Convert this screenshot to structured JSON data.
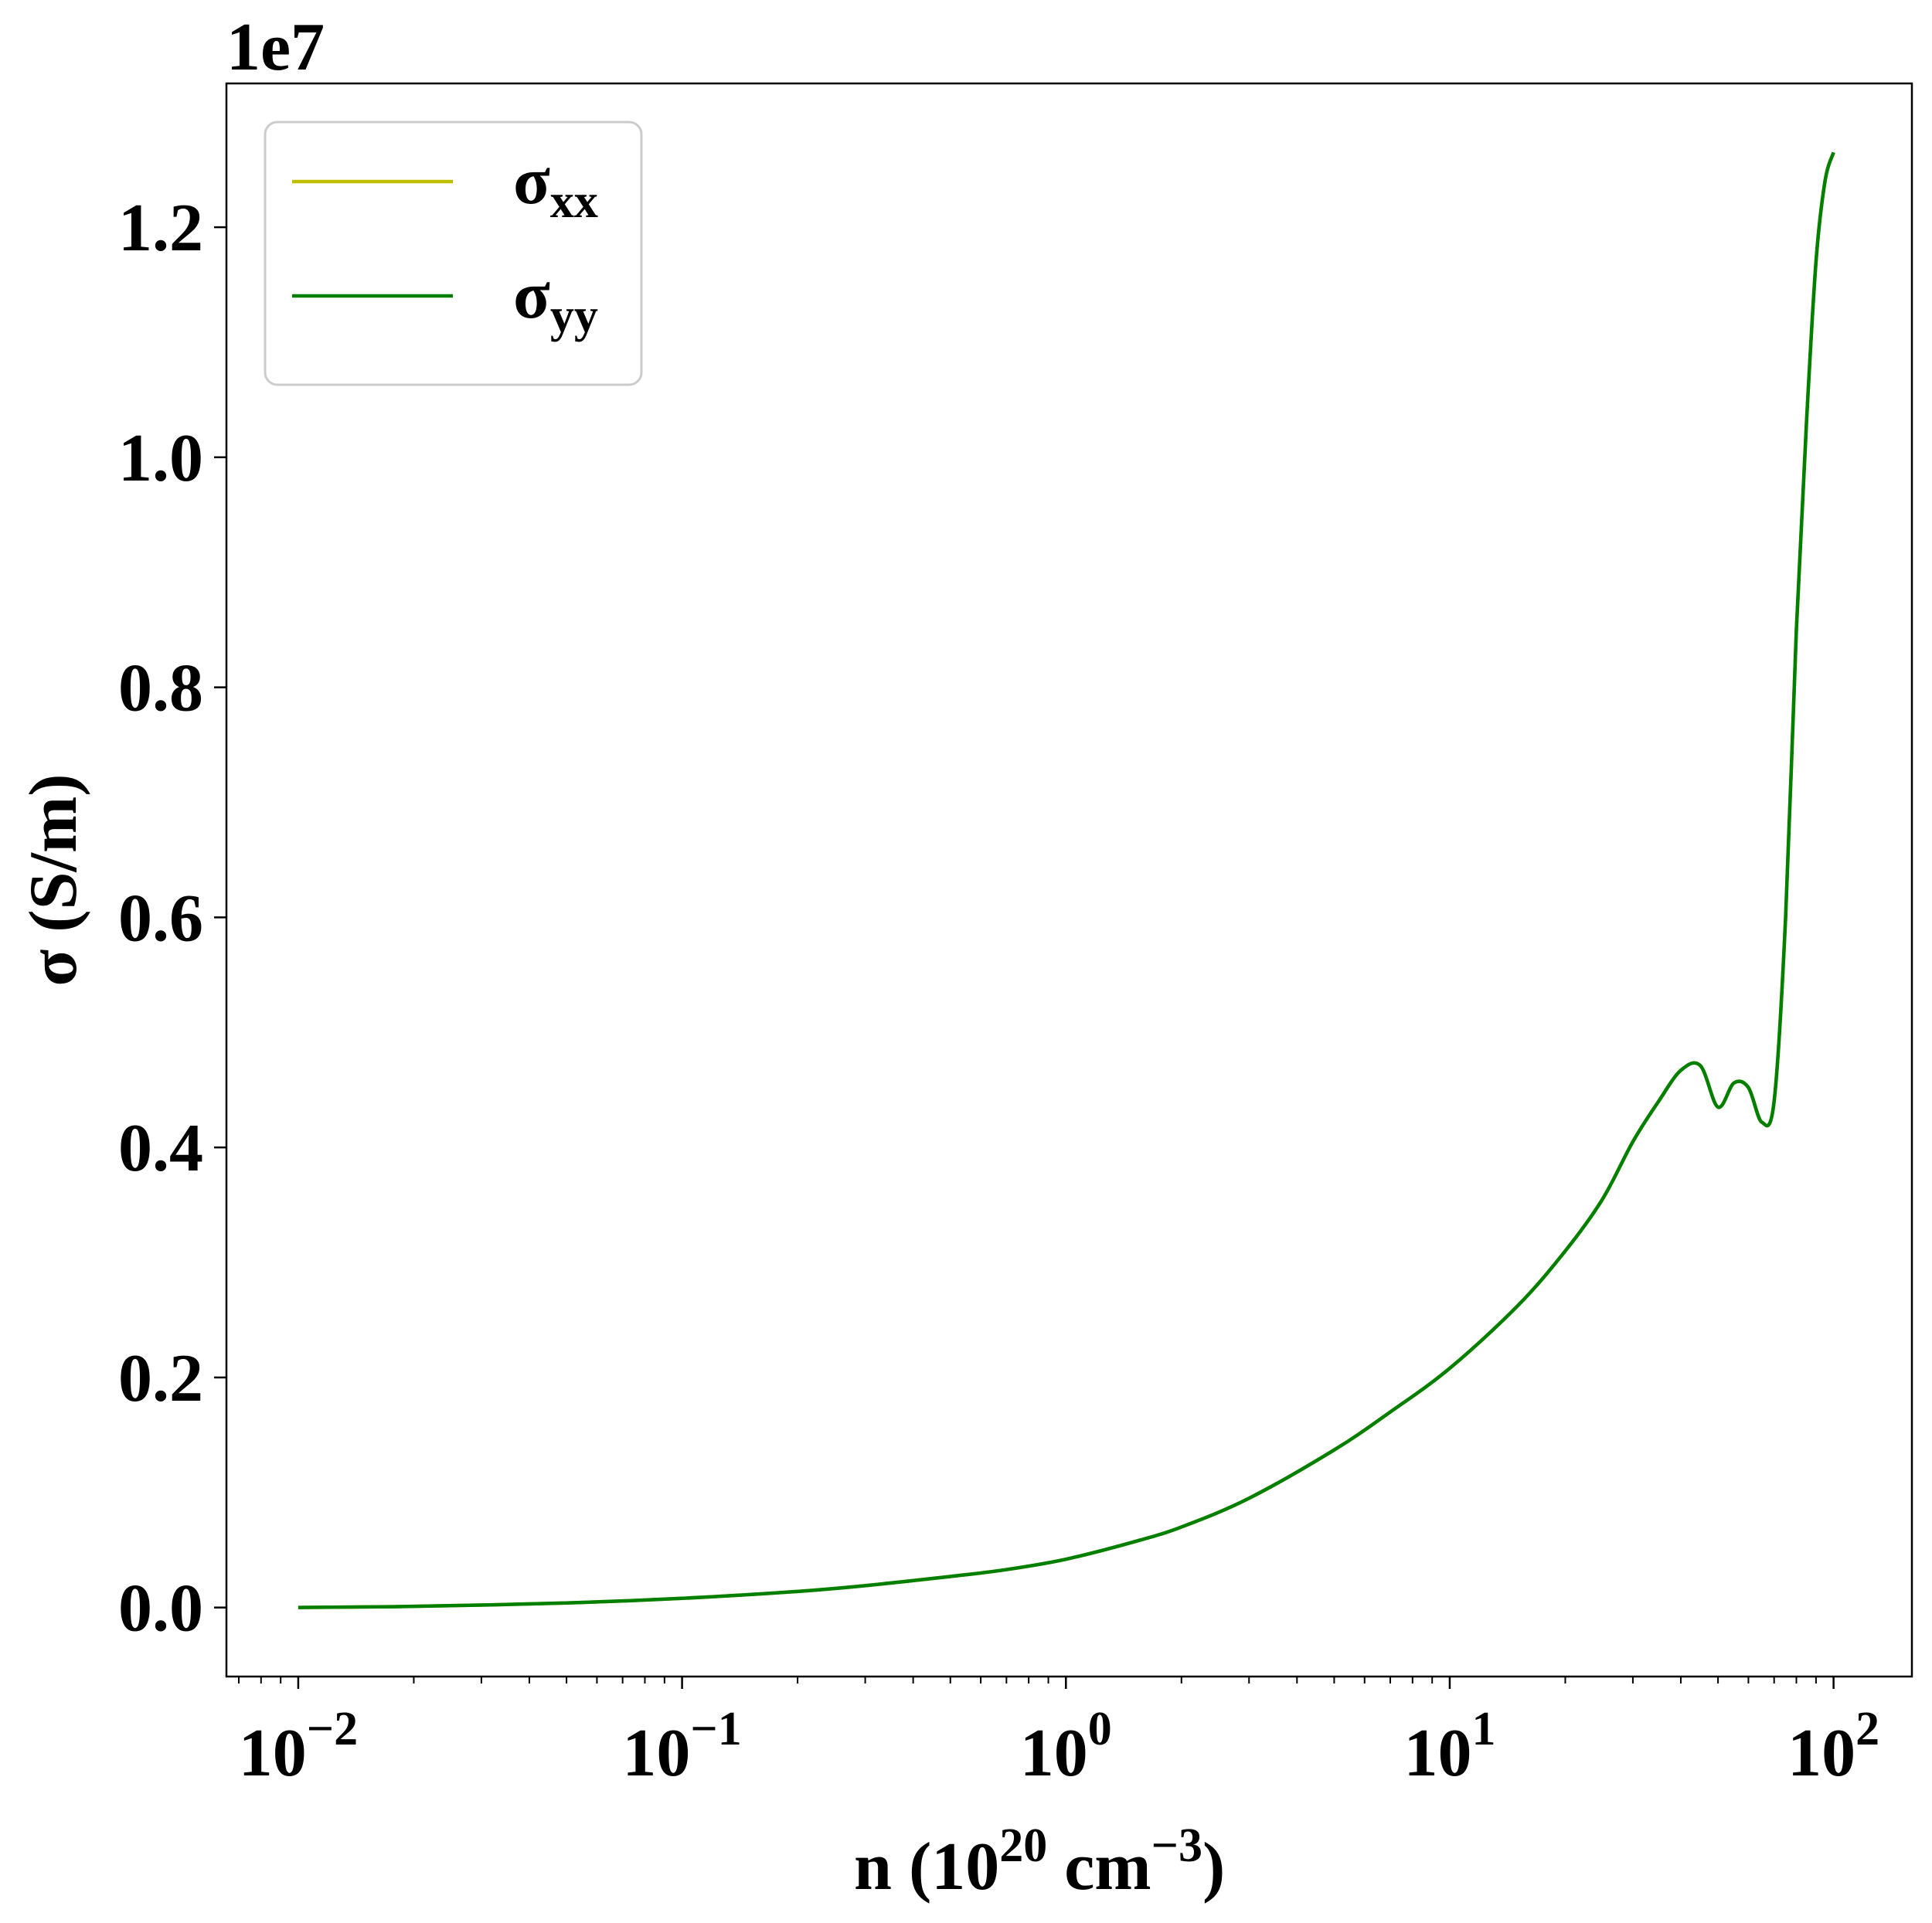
{
  "chart_data": {
    "type": "line",
    "xscale": "log",
    "xlim": [
      0.0065,
      160
    ],
    "ylim": [
      -0.06,
      1.325
    ],
    "y_multiplier_label": "1e7",
    "xlabel": {
      "base": "n (10",
      "sup1": "20",
      "mid": " cm",
      "sup2": "−3",
      "end": ")"
    },
    "ylabel": "σ (S/m)",
    "x_ticks": [
      {
        "value": 0.01,
        "base": "10",
        "exp": "−2"
      },
      {
        "value": 0.1,
        "base": "10",
        "exp": "−1"
      },
      {
        "value": 1,
        "base": "10",
        "exp": "0"
      },
      {
        "value": 10,
        "base": "10",
        "exp": "1"
      },
      {
        "value": 100,
        "base": "10",
        "exp": "2"
      }
    ],
    "y_ticks": [
      {
        "value": 0.0,
        "label": "0.0"
      },
      {
        "value": 0.2,
        "label": "0.2"
      },
      {
        "value": 0.4,
        "label": "0.4"
      },
      {
        "value": 0.6,
        "label": "0.6"
      },
      {
        "value": 0.8,
        "label": "0.8"
      },
      {
        "value": 1.0,
        "label": "1.0"
      },
      {
        "value": 1.2,
        "label": "1.2"
      }
    ],
    "grid": false,
    "legend_position": "top-left",
    "series": [
      {
        "name": "σ",
        "subscript": "xx",
        "color": "#bfbf00",
        "x": [
          0.01,
          0.02,
          0.05,
          0.1,
          0.2,
          0.3,
          0.5,
          0.7,
          1.0,
          1.5,
          2,
          3,
          5,
          7,
          10,
          15,
          20,
          25,
          30,
          35,
          40,
          45,
          50,
          55,
          60,
          65,
          70,
          75,
          80,
          85,
          90,
          95,
          100
        ],
        "values": [
          0.0,
          0.001,
          0.004,
          0.008,
          0.014,
          0.019,
          0.027,
          0.033,
          0.042,
          0.057,
          0.07,
          0.095,
          0.137,
          0.17,
          0.208,
          0.262,
          0.31,
          0.355,
          0.405,
          0.44,
          0.467,
          0.471,
          0.435,
          0.456,
          0.452,
          0.422,
          0.44,
          0.6,
          0.85,
          1.03,
          1.17,
          1.24,
          1.265
        ]
      },
      {
        "name": "σ",
        "subscript": "yy",
        "color": "#007f00",
        "x": [
          0.01,
          0.02,
          0.05,
          0.1,
          0.2,
          0.3,
          0.5,
          0.7,
          1.0,
          1.5,
          2,
          3,
          5,
          7,
          10,
          15,
          20,
          25,
          30,
          35,
          40,
          45,
          50,
          55,
          60,
          65,
          70,
          75,
          80,
          85,
          90,
          95,
          100
        ],
        "values": [
          0.0,
          0.001,
          0.004,
          0.008,
          0.014,
          0.019,
          0.027,
          0.033,
          0.042,
          0.057,
          0.07,
          0.095,
          0.137,
          0.17,
          0.208,
          0.262,
          0.31,
          0.355,
          0.405,
          0.44,
          0.467,
          0.471,
          0.435,
          0.456,
          0.452,
          0.422,
          0.44,
          0.6,
          0.85,
          1.03,
          1.17,
          1.24,
          1.265
        ]
      }
    ]
  }
}
